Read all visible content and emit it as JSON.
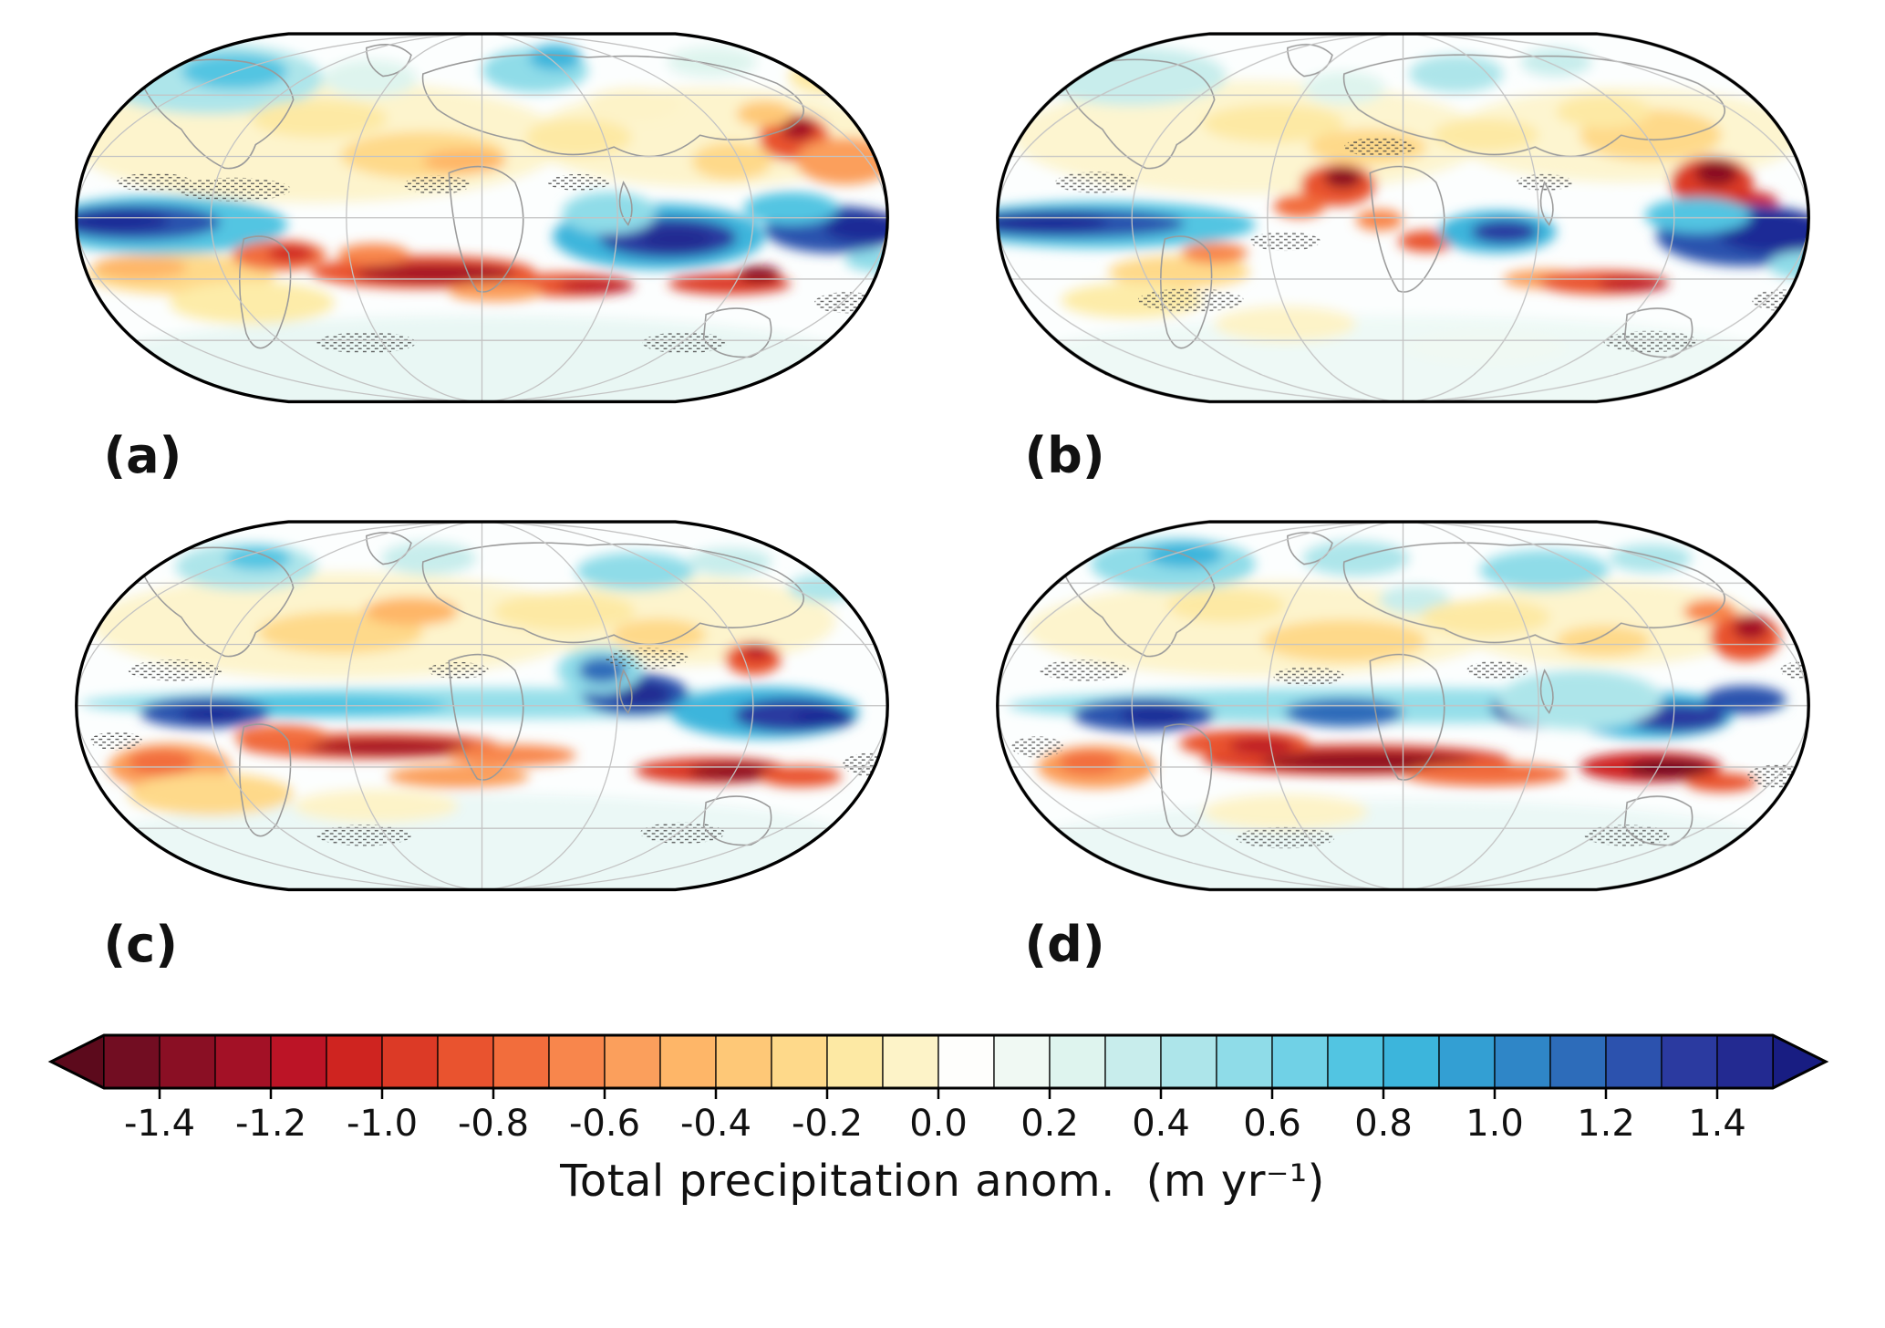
{
  "figure": {
    "panels": [
      {
        "label": "(a)"
      },
      {
        "label": "(b)"
      },
      {
        "label": "(c)"
      },
      {
        "label": "(d)"
      }
    ],
    "colorbar": {
      "ticks": [
        "-1.4",
        "-1.2",
        "-1.0",
        "-0.8",
        "-0.6",
        "-0.4",
        "-0.2",
        "0.0",
        "0.2",
        "0.4",
        "0.6",
        "0.8",
        "1.0",
        "1.2",
        "1.4"
      ],
      "label": "Total precipitation anom.",
      "units": "(m yr⁻¹)",
      "cell_colors": [
        "#720d22",
        "#8a0f24",
        "#a31126",
        "#bc1426",
        "#cf2420",
        "#dc3a26",
        "#e9532f",
        "#f26d3c",
        "#f8864c",
        "#fb9f5c",
        "#feb668",
        "#fec877",
        "#fed98a",
        "#fde9a4",
        "#fdf3c8",
        "#fefefc",
        "#f0f9f3",
        "#def4ee",
        "#c8edec",
        "#ade5ea",
        "#8fdce8",
        "#70d1e6",
        "#52c5e2",
        "#3cb5dc",
        "#339fd3",
        "#2f86c7",
        "#2d6cba",
        "#2c52ae",
        "#2b3aa0",
        "#232a91"
      ],
      "arrow_left_color": "#5c0a1c",
      "arrow_right_color": "#181d82"
    }
  },
  "chart_data": {
    "type": "heatmap",
    "subtype": "global_map_contour_panels",
    "panels": [
      "(a)",
      "(b)",
      "(c)",
      "(d)"
    ],
    "variable": "Total precipitation anom.",
    "units": "m yr⁻¹",
    "projection": "robinson-like global maps with graticule and coastlines",
    "colorbar": {
      "orientation": "horizontal",
      "tick_values": [
        -1.4,
        -1.2,
        -1.0,
        -0.8,
        -0.6,
        -0.4,
        -0.2,
        0.0,
        0.2,
        0.4,
        0.6,
        0.8,
        1.0,
        1.2,
        1.4
      ],
      "range": [
        -1.5,
        1.5
      ],
      "contour_interval": 0.1,
      "extend": "both",
      "colormap": "red-yellow-white-cyan-blue (RdYlBu-like)"
    },
    "legend_position": "bottom",
    "grid": true,
    "annotations": "Hatched/stippled gray patches overlay parts of each map; negative (red) anomaly bands lie along the tropics over Africa and the Indian Ocean, positive (blue) anomalies along the equatorial Pacific and Maritime Continent."
  }
}
